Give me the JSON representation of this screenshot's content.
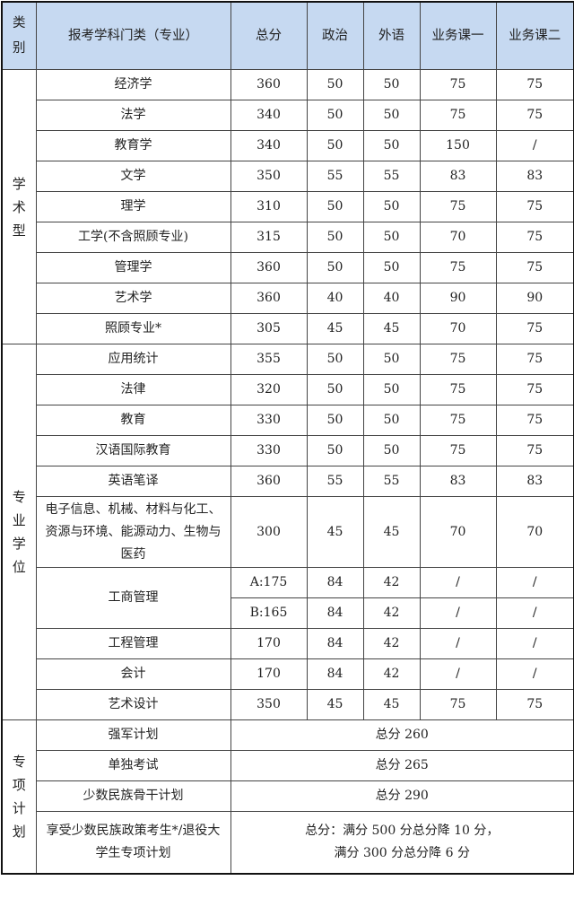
{
  "header": {
    "category": "类别",
    "subject": "报考学科门类（专业）",
    "total": "总分",
    "politics": "政治",
    "foreign_language": "外语",
    "course1": "业务课一",
    "course2": "业务课二"
  },
  "header_color": "#c6d9f1",
  "groups": [
    {
      "category": "学术型",
      "rows": [
        [
          "经济学",
          "360",
          "50",
          "50",
          "75",
          "75"
        ],
        [
          "法学",
          "340",
          "50",
          "50",
          "75",
          "75"
        ],
        [
          "教育学",
          "340",
          "50",
          "50",
          "150",
          "/"
        ],
        [
          "文学",
          "350",
          "55",
          "55",
          "83",
          "83"
        ],
        [
          "理学",
          "310",
          "50",
          "50",
          "75",
          "75"
        ],
        [
          "工学(不含照顾专业)",
          "315",
          "50",
          "50",
          "70",
          "75"
        ],
        [
          "管理学",
          "360",
          "50",
          "50",
          "75",
          "75"
        ],
        [
          "艺术学",
          "360",
          "40",
          "40",
          "90",
          "90"
        ],
        [
          "照顾专业*",
          "305",
          "45",
          "45",
          "70",
          "75"
        ]
      ]
    },
    {
      "category": "专业学位",
      "rows": [
        [
          "应用统计",
          "355",
          "50",
          "50",
          "75",
          "75"
        ],
        [
          "法律",
          "320",
          "50",
          "50",
          "75",
          "75"
        ],
        [
          "教育",
          "330",
          "50",
          "50",
          "75",
          "75"
        ],
        [
          "汉语国际教育",
          "330",
          "50",
          "50",
          "75",
          "75"
        ],
        [
          "英语笔译",
          "360",
          "55",
          "55",
          "83",
          "83"
        ],
        [
          "电子信息、机械、材料与化工、资源与环境、能源动力、生物与医药",
          "300",
          "45",
          "45",
          "70",
          "70"
        ]
      ],
      "business": {
        "name": "工商管理",
        "rows": [
          [
            "A:175",
            "84",
            "42",
            "/",
            "/"
          ],
          [
            "B:165",
            "84",
            "42",
            "/",
            "/"
          ]
        ]
      },
      "rows_after": [
        [
          "工程管理",
          "170",
          "84",
          "42",
          "/",
          "/"
        ],
        [
          "会计",
          "170",
          "84",
          "42",
          "/",
          "/"
        ],
        [
          "艺术设计",
          "350",
          "45",
          "45",
          "75",
          "75"
        ]
      ]
    },
    {
      "category": "专项计划",
      "rows": [
        [
          "强军计划",
          "总分 260"
        ],
        [
          "单独考试",
          "总分 265"
        ],
        [
          "少数民族骨干计划",
          "总分 290"
        ],
        [
          "享受少数民族政策考生*/退役大学生专项计划",
          "总分：满分 500 分总分降 10 分，\n满分 300 分总分降 6 分"
        ]
      ]
    }
  ]
}
